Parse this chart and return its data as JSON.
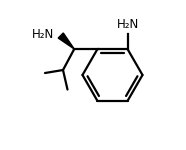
{
  "bg_color": "#ffffff",
  "line_color": "#000000",
  "lw": 1.6,
  "bx": 0.63,
  "by": 0.5,
  "br": 0.2,
  "nh2_top_label": "H₂N",
  "nh2_side_label": "H₂N"
}
